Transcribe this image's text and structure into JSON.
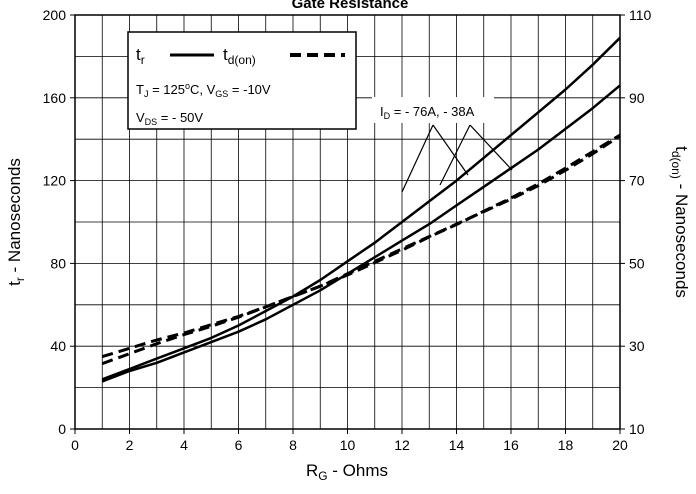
{
  "chart_data": {
    "type": "line",
    "title": "Gate Resistance",
    "xlabel": {
      "main": "R",
      "sub": "G",
      "rest": " - Ohms"
    },
    "ylabel_left": {
      "main": "t",
      "sub": "r",
      "rest": " - Nanoseconds"
    },
    "ylabel_right": {
      "main": "t",
      "sub": "d(on)",
      "rest": " - Nanoseconds"
    },
    "xlim": [
      0,
      20
    ],
    "ylim_left": [
      0,
      200
    ],
    "ylim_right": [
      10,
      110
    ],
    "x_ticks": [
      "0",
      "2",
      "4",
      "6",
      "8",
      "10",
      "12",
      "14",
      "16",
      "18",
      "20"
    ],
    "y_ticks_left": [
      "0",
      "40",
      "80",
      "120",
      "160",
      "200"
    ],
    "y_ticks_right": [
      "10",
      "30",
      "50",
      "70",
      "90",
      "110"
    ],
    "grid": true,
    "legend": {
      "tr_main": "t",
      "tr_sub": "r",
      "td_main": "t",
      "td_sub": "d(on)",
      "cond1": {
        "a": "T",
        "a_sub": "J",
        "b": " = 125",
        "b_sup": "o",
        "c": "C,  V",
        "c_sub": "GS",
        "d": " = -10V"
      },
      "cond2": {
        "a": "V",
        "a_sub": "DS",
        "b": " = - 50V"
      }
    },
    "annotation": {
      "a": "I",
      "a_sub": "D",
      "b": " = - 76A, - 38A"
    },
    "series": [
      {
        "style": "solid",
        "axis": "left",
        "x": [
          1,
          2,
          3,
          4,
          5,
          6,
          7,
          8,
          9,
          10,
          11,
          12,
          13,
          14,
          15,
          16,
          17,
          18,
          19,
          20
        ],
        "y": [
          24,
          29,
          34,
          39,
          44,
          50,
          57,
          64,
          72,
          81,
          90,
          100,
          110,
          120,
          131,
          142,
          153,
          164,
          176,
          189
        ]
      },
      {
        "style": "solid",
        "axis": "left",
        "x": [
          1,
          2,
          3,
          4,
          5,
          6,
          7,
          8,
          9,
          10,
          11,
          12,
          13,
          14,
          15,
          16,
          17,
          18,
          19,
          20
        ],
        "y": [
          23,
          28,
          32,
          37,
          42,
          47,
          53,
          60,
          67,
          75,
          83,
          91,
          99,
          108,
          117,
          126,
          135,
          145,
          155,
          166
        ]
      },
      {
        "style": "dashed",
        "axis": "right",
        "x": [
          1,
          2,
          3,
          4,
          5,
          6,
          7,
          8,
          9,
          10,
          11,
          12,
          13,
          14,
          15,
          16,
          17,
          18,
          19,
          20
        ],
        "y": [
          27.5,
          29.5,
          31.5,
          33.2,
          35.2,
          37.2,
          39.5,
          42,
          44.5,
          47.5,
          50.5,
          53.5,
          56.5,
          59.5,
          62.5,
          65.5,
          68.8,
          72.5,
          76.5,
          80.8
        ]
      },
      {
        "style": "dashed",
        "axis": "right",
        "x": [
          1,
          2,
          3,
          4,
          5,
          6,
          7,
          8,
          9,
          10,
          11,
          12,
          13,
          14,
          15,
          16,
          17,
          18,
          19,
          20
        ],
        "y": [
          25.8,
          28.2,
          30.6,
          32.8,
          34.8,
          37,
          39.5,
          42,
          44.5,
          47.2,
          50.2,
          53.2,
          56.4,
          59.4,
          62.6,
          65.8,
          69.2,
          73,
          77,
          81
        ]
      }
    ]
  }
}
